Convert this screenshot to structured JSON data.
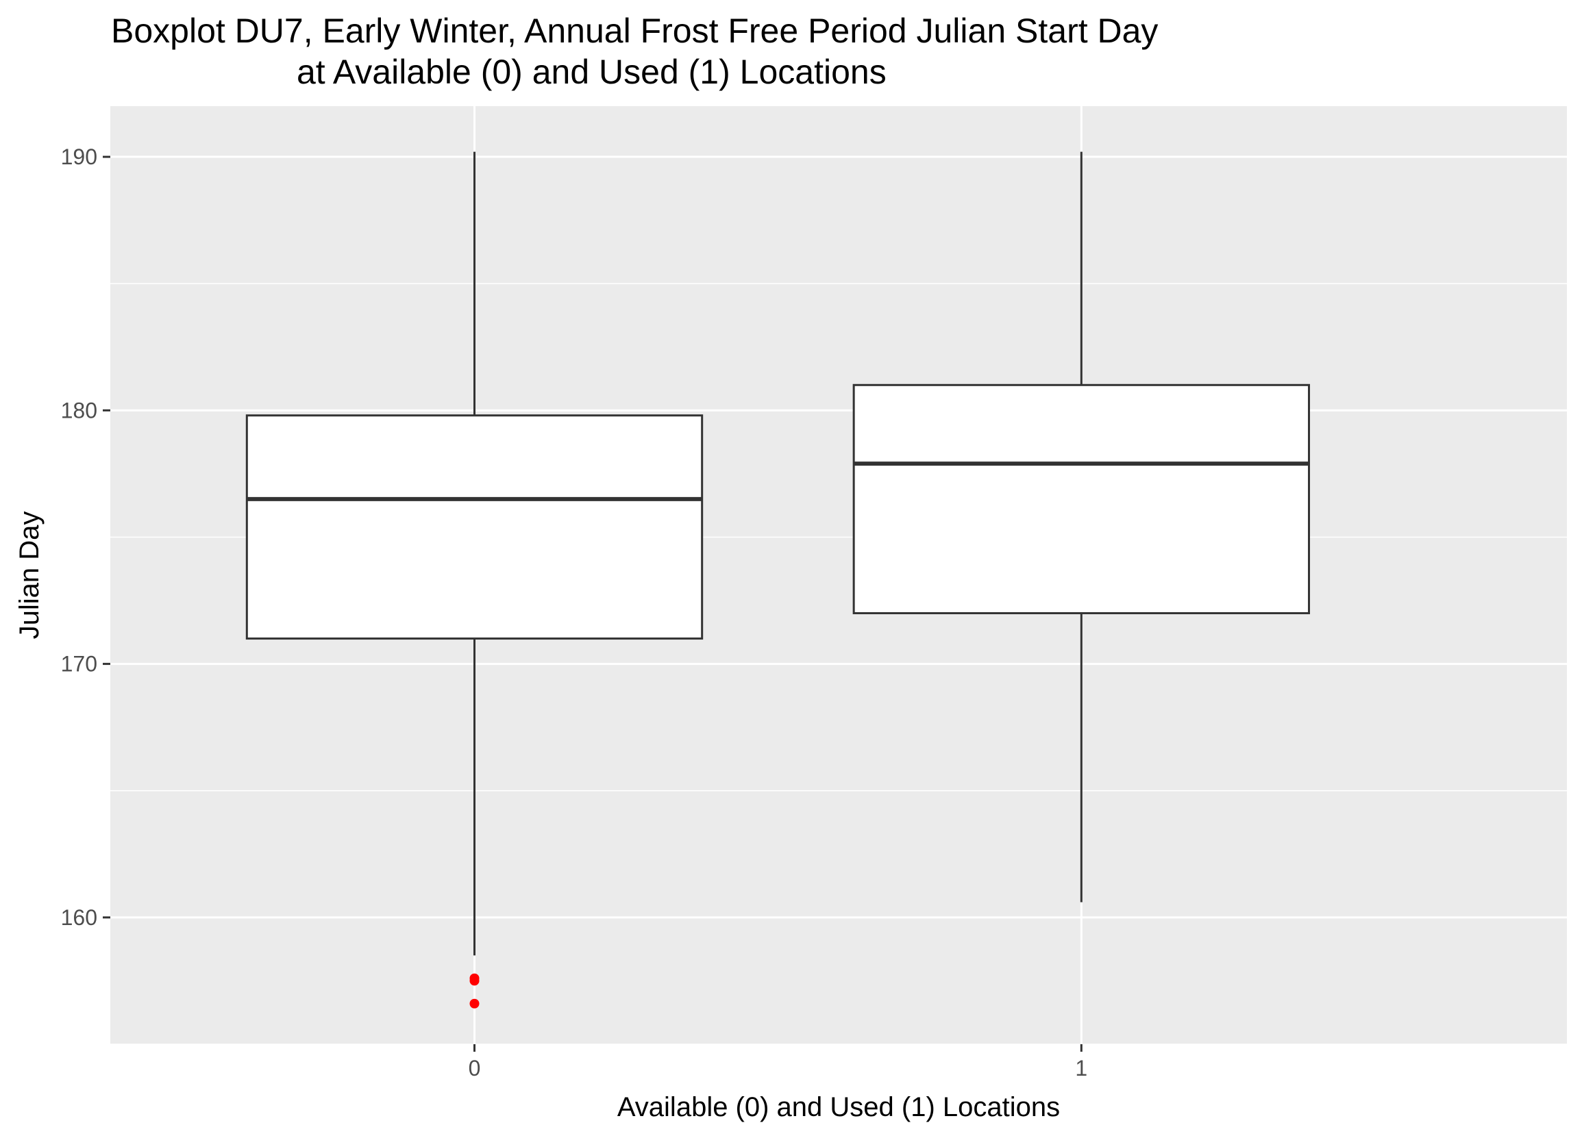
{
  "chart_data": {
    "type": "boxplot",
    "title_lines": [
      "Boxplot DU7, Early Winter, Annual Frost Free Period Julian Start Day",
      "at Available (0) and Used (1) Locations"
    ],
    "xlabel": "Available (0) and Used (1) Locations",
    "ylabel": "Julian Day",
    "categories": [
      "0",
      "1"
    ],
    "ylim": [
      155,
      192
    ],
    "y_ticks": [
      160,
      170,
      180,
      190
    ],
    "grid": true,
    "legend": "none",
    "boxes": [
      {
        "category": "0",
        "whisker_low": 158.5,
        "q1": 171,
        "median": 176.5,
        "q3": 179.8,
        "whisker_high": 190.2,
        "outliers": [
          157.6,
          157.5,
          156.6
        ]
      },
      {
        "category": "1",
        "whisker_low": 160.6,
        "q1": 172,
        "median": 177.9,
        "q3": 181,
        "whisker_high": 190.2,
        "outliers": []
      }
    ],
    "colors": {
      "panel": "#ebebeb",
      "grid": "#ffffff",
      "box_fill": "#ffffff",
      "box_line": "#333333",
      "outlier": "#ff0000",
      "tick_text": "#4d4d4d",
      "axis_text": "#000000"
    }
  }
}
